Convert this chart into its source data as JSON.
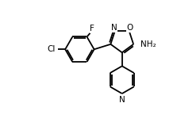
{
  "background_color": "#ffffff",
  "line_color": "#000000",
  "line_width": 1.3,
  "font_size": 7.5,
  "fig_width": 2.23,
  "fig_height": 1.59,
  "dpi": 100,
  "xlim": [
    0,
    10
  ],
  "ylim": [
    0,
    7.15
  ]
}
